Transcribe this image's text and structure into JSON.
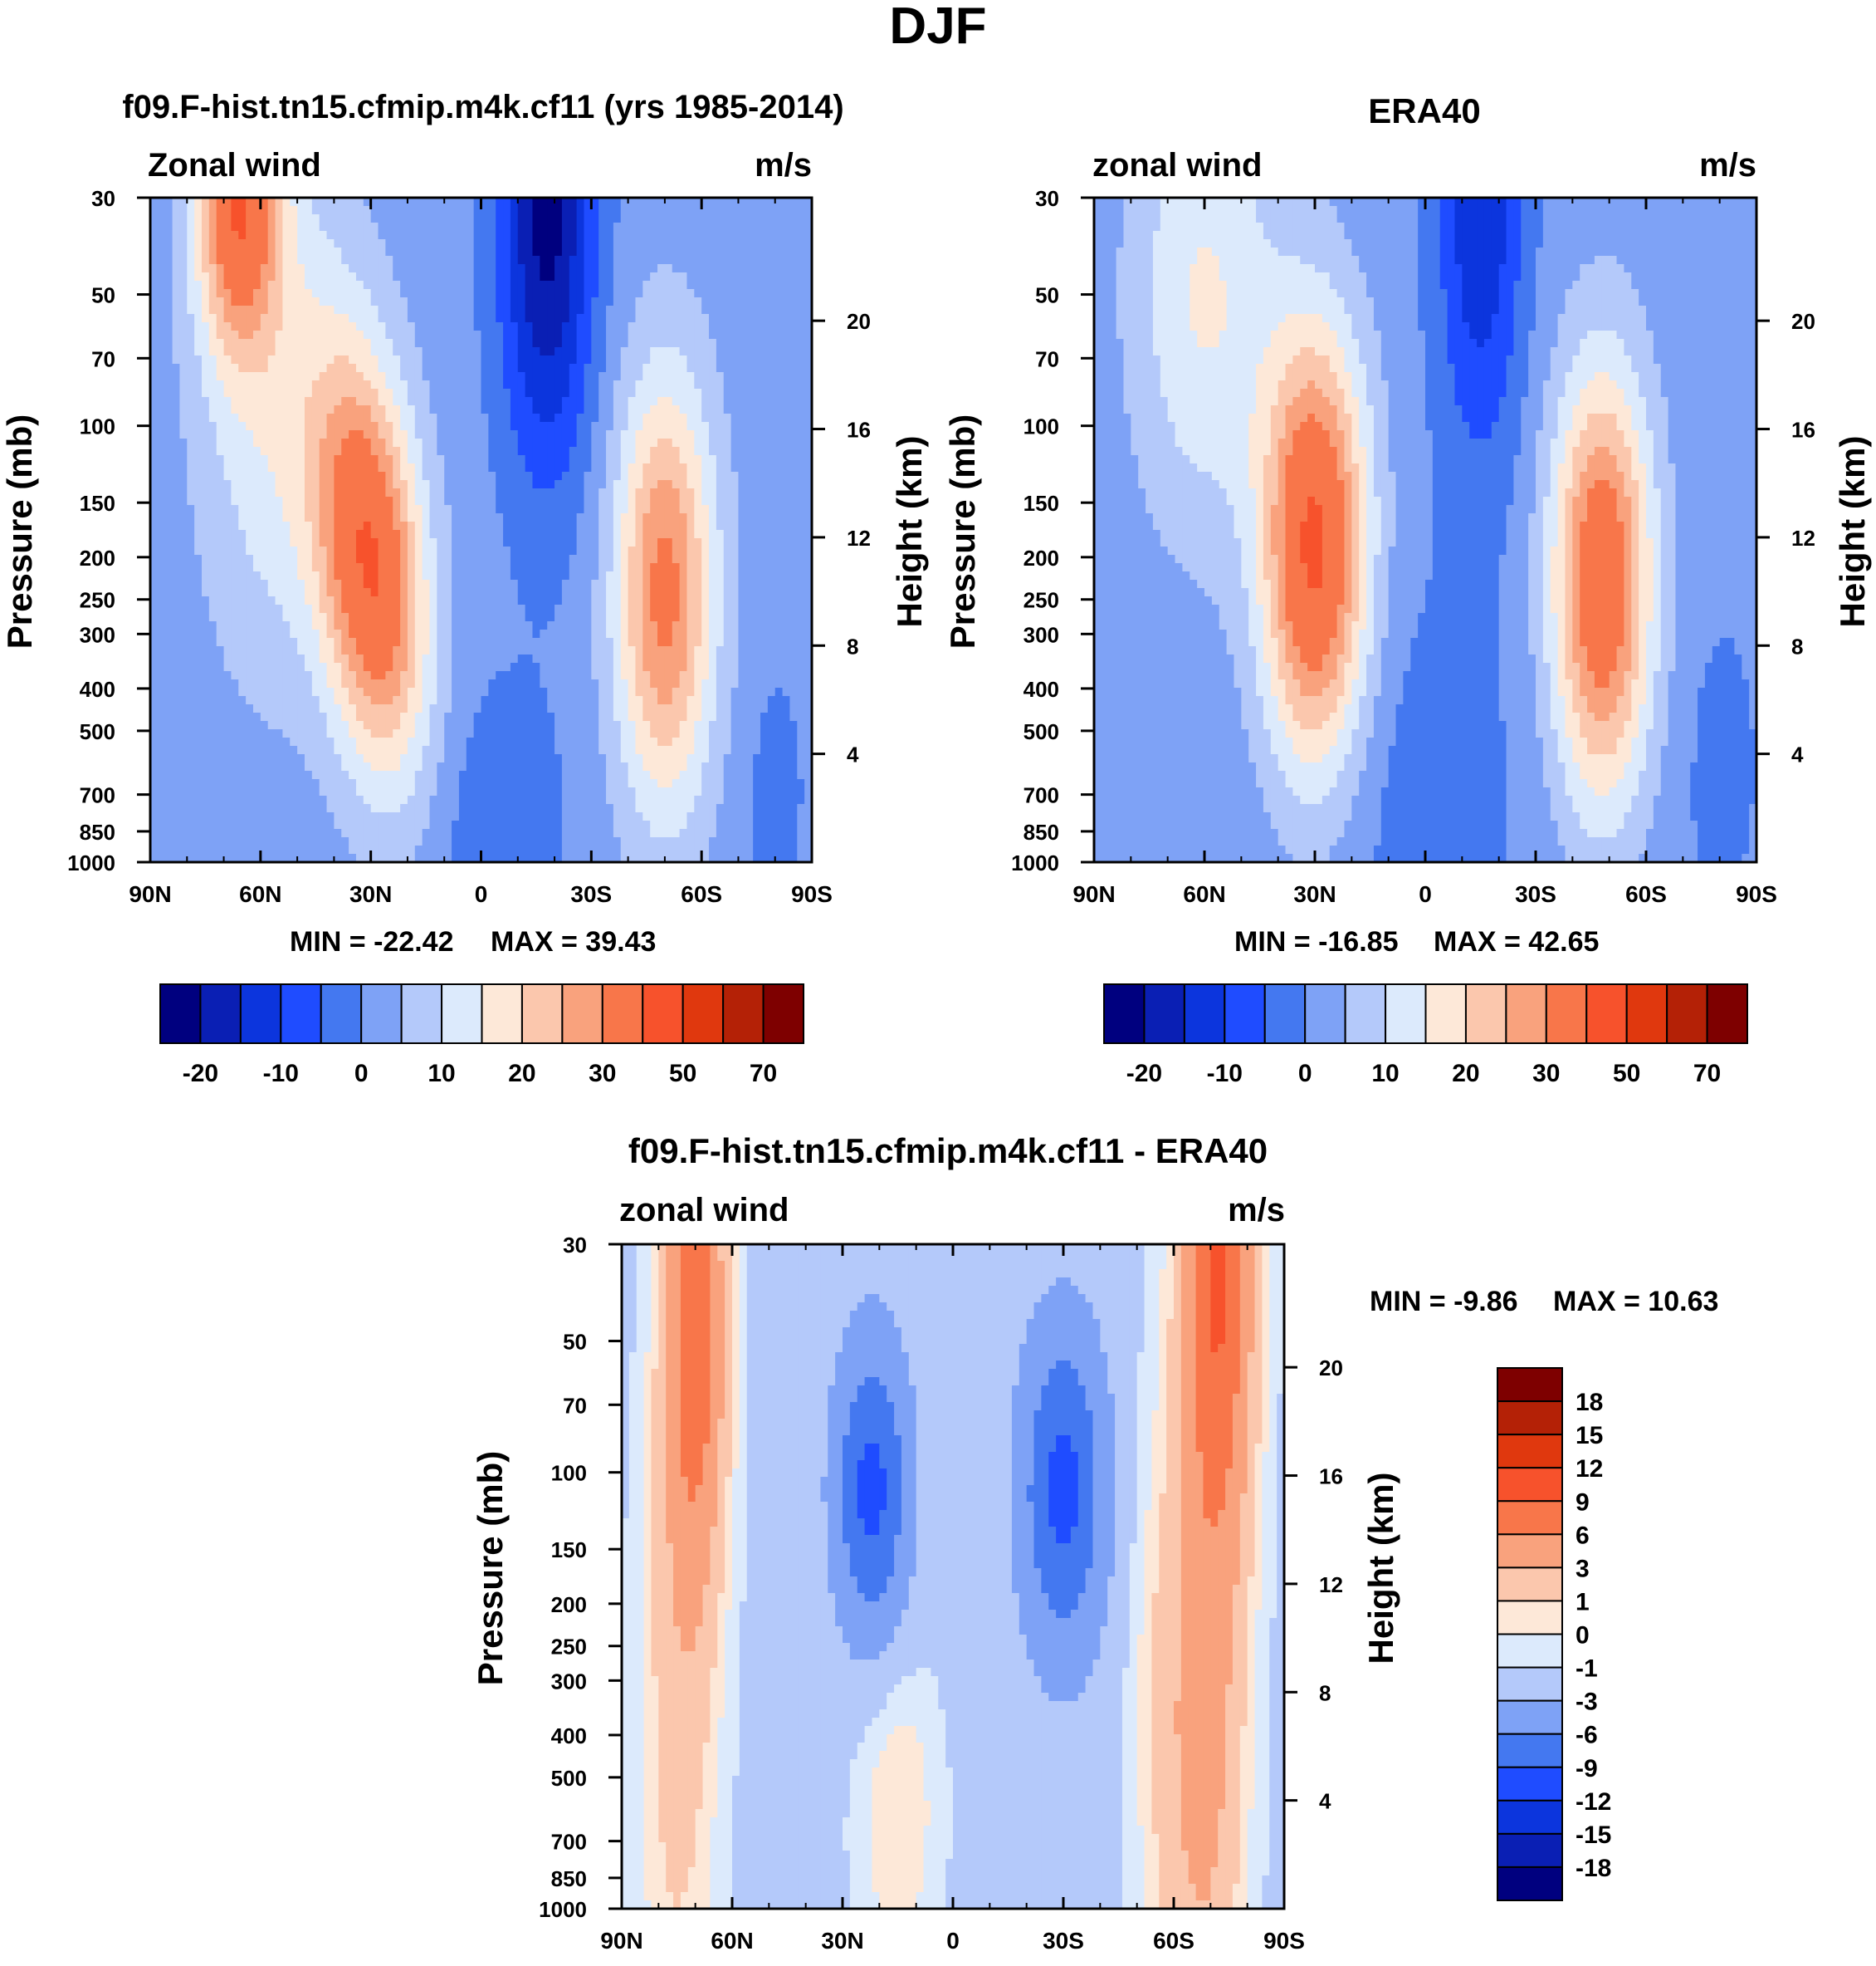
{
  "title": "DJF",
  "chart_data": [
    {
      "type": "heatmap",
      "title": "f09.F-hist.tn15.cfmip.m4k.cf11 (yrs 1985-2014)",
      "subtitle_left": "Zonal wind",
      "subtitle_right": "m/s",
      "xlabel": "",
      "ylabel": "Pressure (mb)",
      "ylabel_right": "Height (km)",
      "x_ticks": [
        "90N",
        "60N",
        "30N",
        "0",
        "30S",
        "60S",
        "90S"
      ],
      "y_ticks": [
        "30",
        "50",
        "70",
        "100",
        "150",
        "200",
        "250",
        "300",
        "400",
        "500",
        "700",
        "850",
        "1000"
      ],
      "height_ticks": [
        "20",
        "16",
        "12",
        "8",
        "4"
      ],
      "min_label": "MIN = -22.42",
      "max_label": "MAX =  39.43",
      "colorbar_labels": [
        "-20",
        "-10",
        "0",
        "10",
        "20",
        "30",
        "50",
        "70"
      ],
      "colorbar_levels": [
        -25,
        -20,
        -15,
        -10,
        -5,
        0,
        5,
        10,
        15,
        20,
        25,
        30,
        40,
        50,
        60,
        70,
        80
      ],
      "features": [
        {
          "lat": -66,
          "p": 35,
          "value": 35
        },
        {
          "lat": -30,
          "p": 200,
          "value": 39
        },
        {
          "lat": 52,
          "p": 250,
          "value": 31
        },
        {
          "lat": 18,
          "p": 30,
          "value": -22
        }
      ]
    },
    {
      "type": "heatmap",
      "title": "ERA40",
      "subtitle_left": "zonal wind",
      "subtitle_right": "m/s",
      "xlabel": "",
      "ylabel": "Pressure (mb)",
      "ylabel_right": "Height (km)",
      "x_ticks": [
        "90N",
        "60N",
        "30N",
        "0",
        "30S",
        "60S",
        "90S"
      ],
      "y_ticks": [
        "30",
        "50",
        "70",
        "100",
        "150",
        "200",
        "250",
        "300",
        "400",
        "500",
        "700",
        "850",
        "1000"
      ],
      "height_ticks": [
        "20",
        "16",
        "12",
        "8",
        "4"
      ],
      "min_label": "MIN = -16.85",
      "max_label": "MAX =  42.65",
      "colorbar_labels": [
        "-20",
        "-10",
        "0",
        "10",
        "20",
        "30",
        "50",
        "70"
      ],
      "colorbar_levels": [
        -25,
        -20,
        -15,
        -10,
        -5,
        0,
        5,
        10,
        15,
        20,
        25,
        30,
        40,
        50,
        60,
        70,
        80
      ],
      "features": [
        {
          "lat": -30,
          "p": 180,
          "value": 42
        },
        {
          "lat": 48,
          "p": 230,
          "value": 38
        },
        {
          "lat": 15,
          "p": 30,
          "value": -17
        }
      ]
    },
    {
      "type": "heatmap",
      "title": "f09.F-hist.tn15.cfmip.m4k.cf11 - ERA40",
      "subtitle_left": "zonal wind",
      "subtitle_right": "m/s",
      "xlabel": "",
      "ylabel": "Pressure (mb)",
      "ylabel_right": "Height (km)",
      "x_ticks": [
        "90N",
        "60N",
        "30N",
        "0",
        "30S",
        "60S",
        "90S"
      ],
      "y_ticks": [
        "30",
        "50",
        "70",
        "100",
        "150",
        "200",
        "250",
        "300",
        "400",
        "500",
        "700",
        "850",
        "1000"
      ],
      "height_ticks": [
        "20",
        "16",
        "12",
        "8",
        "4"
      ],
      "min_label": "MIN =  -9.86",
      "max_label": "MAX =  10.63",
      "colorbar_labels": [
        "18",
        "15",
        "12",
        "9",
        "6",
        "3",
        "1",
        "0",
        "-1",
        "-3",
        "-6",
        "-9",
        "-12",
        "-15",
        "-18"
      ],
      "colorbar_levels": [
        -21,
        -18,
        -15,
        -12,
        -9,
        -6,
        -3,
        -1,
        0,
        1,
        3,
        6,
        9,
        12,
        15,
        18,
        21
      ],
      "features": [
        {
          "lat": -70,
          "p": 35,
          "value": 10.6
        },
        {
          "lat": 68,
          "p": 60,
          "value": 8
        },
        {
          "lat": 20,
          "p": 110,
          "value": -9.9
        },
        {
          "lat": -30,
          "p": 110,
          "value": -7
        }
      ]
    }
  ],
  "palette": [
    "#00007f",
    "#0a1fb4",
    "#0c35dd",
    "#1f4cff",
    "#4478f0",
    "#7ea2f6",
    "#b4c9fa",
    "#dceafc",
    "#fde8d8",
    "#fbc7ad",
    "#f9a27d",
    "#f8764a",
    "#f7522c",
    "#e0380e",
    "#b42106",
    "#7e0000"
  ]
}
